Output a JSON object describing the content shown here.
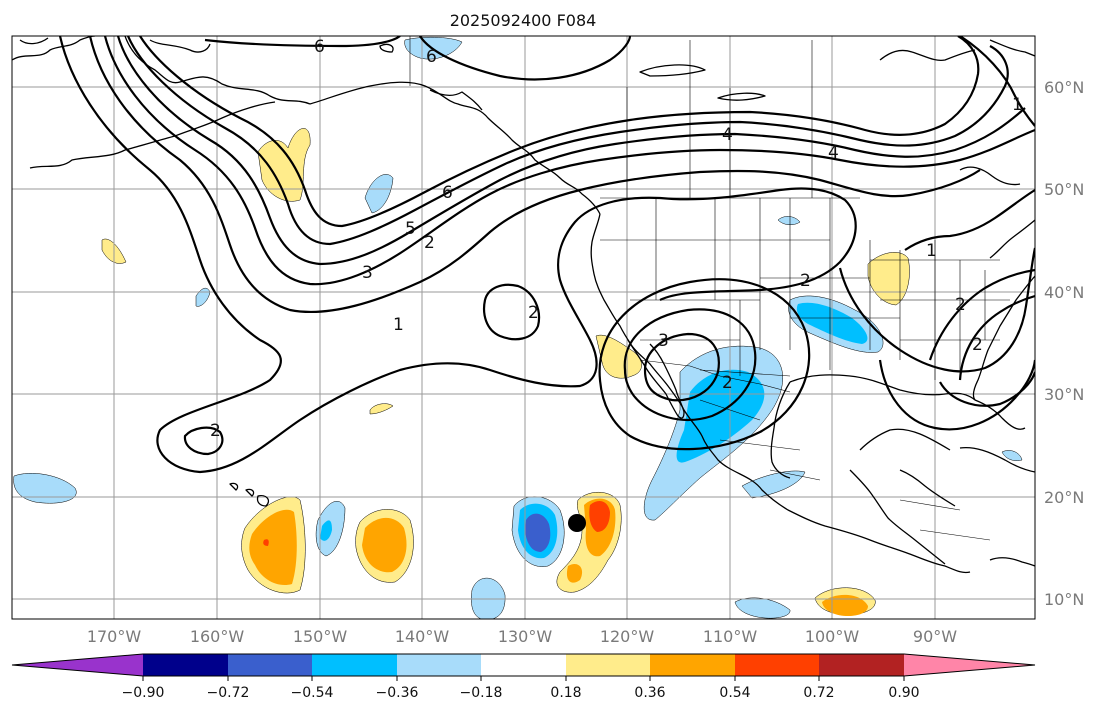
{
  "title": "2025092400 F084",
  "lon_ticks": [
    "170°W",
    "160°W",
    "150°W",
    "140°W",
    "130°W",
    "120°W",
    "110°W",
    "100°W",
    "90°W"
  ],
  "lat_ticks": [
    "60°N",
    "50°N",
    "40°N",
    "30°N",
    "20°N",
    "10°N"
  ],
  "colorbar": {
    "ticks": [
      "−0.90",
      "−0.72",
      "−0.54",
      "−0.36",
      "−0.18",
      "0.18",
      "0.36",
      "0.54",
      "0.72",
      "0.90"
    ],
    "colors": [
      "#9933cc",
      "#00008b",
      "#3a5fcd",
      "#00bfff",
      "#a8dcfa",
      "#ffffff",
      "#ffec8b",
      "#ffa500",
      "#ff4000",
      "#b22222",
      "#ff85a8"
    ]
  },
  "contour_labels": [
    "6",
    "6",
    "4",
    "4",
    "6",
    "5",
    "2",
    "3",
    "1",
    "2",
    "2",
    "2",
    "3",
    "2",
    "1",
    "2",
    "2",
    "1"
  ],
  "marker": "storm-center-dot"
}
